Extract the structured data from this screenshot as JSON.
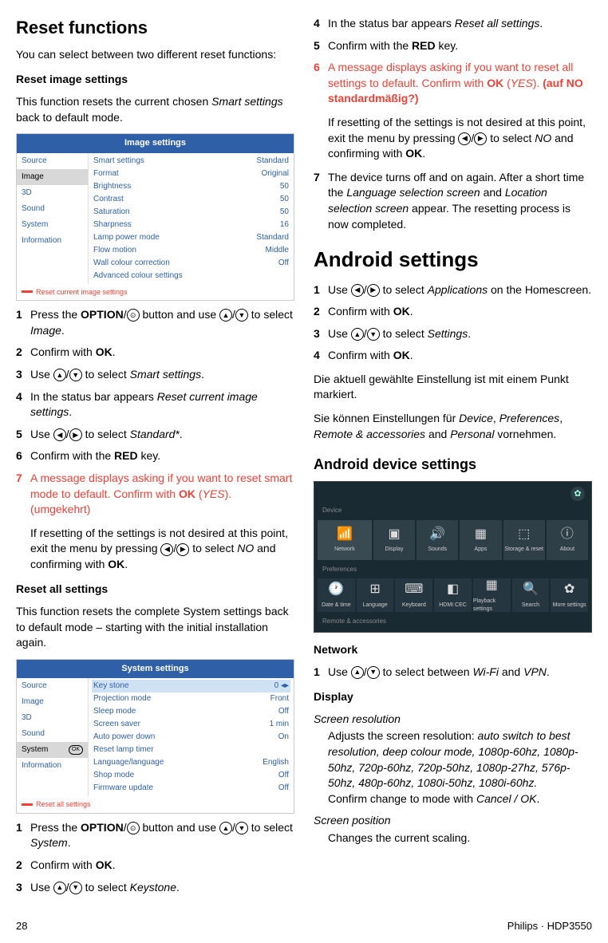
{
  "col1": {
    "h1": "Reset functions",
    "intro": "You can select between two different reset functions:",
    "subhead1": "Reset image settings",
    "para1a": "This function resets the current chosen ",
    "para1b": "Smart settings",
    "para1c": " back to default mode.",
    "imagePanel": {
      "header": "Image settings",
      "leftMenu": [
        "Source",
        "Image",
        "3D",
        "Sound",
        "System",
        "Information"
      ],
      "activeIndex": 1,
      "rows": [
        {
          "label": "Smart settings",
          "value": "Standard"
        },
        {
          "label": "Format",
          "value": "Original"
        },
        {
          "label": "Brightness",
          "value": "50"
        },
        {
          "label": "Contrast",
          "value": "50"
        },
        {
          "label": "Saturation",
          "value": "50"
        },
        {
          "label": "Sharpness",
          "value": "16"
        },
        {
          "label": "Lamp power mode",
          "value": "Standard"
        },
        {
          "label": "Flow motion",
          "value": "Middle"
        },
        {
          "label": "Wall colour correction",
          "value": "Off"
        },
        {
          "label": "Advanced colour settings",
          "value": ""
        }
      ],
      "footer": "Reset current image settings"
    },
    "steps1": {
      "1a": "Press the ",
      "1b": "OPTION",
      "1c": "/",
      "1d": " button and use ",
      "1e": " to select ",
      "1f": "Image",
      "1g": ".",
      "2a": "Confirm with ",
      "2b": "OK",
      "2c": ".",
      "3a": "Use ",
      "3b": " to select ",
      "3c": "Smart settings",
      "3d": ".",
      "4a": "In the status bar appears ",
      "4b": "Reset current image settings",
      "4c": ".",
      "5a": "Use ",
      "5b": " to select ",
      "5c": "Standard*",
      "5d": ".",
      "6a": "Confirm with the ",
      "6b": "RED",
      "6c": " key.",
      "7a": "A message displays asking if you want to reset smart mode to default. Confirm with ",
      "7b": "OK",
      "7c": " (",
      "7d": "YES",
      "7e": "). (umgekehrt)",
      "note_a": "If resetting of the settings is not desired at this point, exit the menu by pressing ",
      "note_b": " to select ",
      "note_c": "NO",
      "note_d": " and confirming with ",
      "note_e": "OK",
      "note_f": "."
    },
    "subhead2": "Reset all settings",
    "para2": "This function resets the complete System settings back to default mode – starting with the initial installation again.",
    "systemPanel": {
      "header": "System settings",
      "leftMenu": [
        "Source",
        "Image",
        "3D",
        "Sound",
        "System",
        "Information"
      ],
      "activeIndex": 4,
      "rows": [
        {
          "label": "Key stone",
          "value": "0  ◂▸",
          "hl": true
        },
        {
          "label": "Projection mode",
          "value": "Front"
        },
        {
          "label": "Sleep mode",
          "value": "Off"
        },
        {
          "label": "Screen saver",
          "value": "1 min"
        },
        {
          "label": "Auto power down",
          "value": "On"
        },
        {
          "label": "Reset lamp timer",
          "value": ""
        },
        {
          "label": "Language/language",
          "value": "English"
        },
        {
          "label": "Shop mode",
          "value": "Off"
        },
        {
          "label": "Firmware update",
          "value": "Off"
        }
      ],
      "footer": "Reset all settings"
    },
    "steps2": {
      "1a": "Press the ",
      "1b": "OPTION",
      "1c": "/",
      "1d": " button and use ",
      "1e": " to select ",
      "1f": "System",
      "1g": ".",
      "2a": "Confirm with ",
      "2b": "OK",
      "2c": ".",
      "3a": "Use ",
      "3b": " to select ",
      "3c": "Keystone",
      "3d": "."
    }
  },
  "col2": {
    "steps3": {
      "4a": "In the status bar appears ",
      "4b": "Reset all settings",
      "4c": ".",
      "5a": "Confirm with the ",
      "5b": "RED",
      "5c": " key.",
      "6a": "A message displays asking if you want to reset all settings to default. Confirm with ",
      "6b": "OK",
      "6c": " (",
      "6d": "YES",
      "6e": "). ",
      "6f": "(auf NO standardmäßig?)",
      "note_a": "If resetting of the settings is not desired at this point, exit the menu by pressing ",
      "note_b": " to select ",
      "note_c": "NO",
      "note_d": " and confirming with ",
      "note_e": "OK",
      "note_f": ".",
      "7a": "The device turns off and on again. After a short time the ",
      "7b": "Language selection screen",
      "7c": " and ",
      "7d": "Location selection screen",
      "7e": " appear. The resetting process is now completed."
    },
    "h2": "Android settings",
    "stepsA": {
      "1a": "Use ",
      "1b": " to select ",
      "1c": "Applications",
      "1d": " on the Homescreen.",
      "2a": "Confirm with ",
      "2b": "OK",
      "2c": ".",
      "3a": "Use ",
      "3b": " to select ",
      "3c": "Settings",
      "3d": ".",
      "4a": "Confirm with ",
      "4b": "OK",
      "4c": "."
    },
    "para3": "Die aktuell gewählte Einstellung ist mit einem Punkt markiert.",
    "para4a": "Sie können Einstellungen für ",
    "para4b": "Device",
    "para4c": ", ",
    "para4d": "Preferences",
    "para4e": ", ",
    "para4f": "Remote & accessories",
    "para4g": " and ",
    "para4h": "Personal",
    "para4i": " vornehmen.",
    "h3": "Android device settings",
    "android": {
      "deviceLabel": "Device",
      "prefLabel": "Preferences",
      "remoteLabel": "Remote & accessories",
      "tiles1": [
        {
          "icon": "📶",
          "label": "Network"
        },
        {
          "icon": "▣",
          "label": "Display"
        },
        {
          "icon": "🔊",
          "label": "Sounds"
        },
        {
          "icon": "▦",
          "label": "Apps"
        },
        {
          "icon": "⬚",
          "label": "Storage & reset"
        },
        {
          "icon": "ⓘ",
          "label": "About"
        }
      ],
      "tiles2": [
        {
          "icon": "🕐",
          "label": "Date & time"
        },
        {
          "icon": "⊞",
          "label": "Language"
        },
        {
          "icon": "⌨",
          "label": "Keyboard"
        },
        {
          "icon": "◧",
          "label": "HDMI CEC"
        },
        {
          "icon": "▦",
          "label": "Playback settings"
        },
        {
          "icon": "🔍",
          "label": "Search"
        },
        {
          "icon": "✿",
          "label": "More settings"
        }
      ]
    },
    "networkHead": "Network",
    "netStep_a": "Use ",
    "netStep_b": " to select between ",
    "netStep_c": "Wi-Fi",
    "netStep_d": " and ",
    "netStep_e": "VPN",
    "netStep_f": ".",
    "displayHead": "Display",
    "screenResTitle": "Screen resolution",
    "screenResBody_a": "Adjusts the screen resolution: ",
    "screenResBody_b": "auto switch to best resolution, deep colour mode, 1080p-60hz, 1080p-50hz, 720p-60hz, 720p-50hz, 1080p-27hz, 576p-50hz, 480p-60hz, 1080i-50hz, 1080i-60hz.",
    "screenResBody_c": "Confirm change to mode with ",
    "screenResBody_d": "Cancel / OK",
    "screenResBody_e": ".",
    "screenPosTitle": "Screen position",
    "screenPosBody": "Changes the current scaling."
  },
  "footer": {
    "page": "28",
    "brand": "Philips · HDP3550"
  }
}
